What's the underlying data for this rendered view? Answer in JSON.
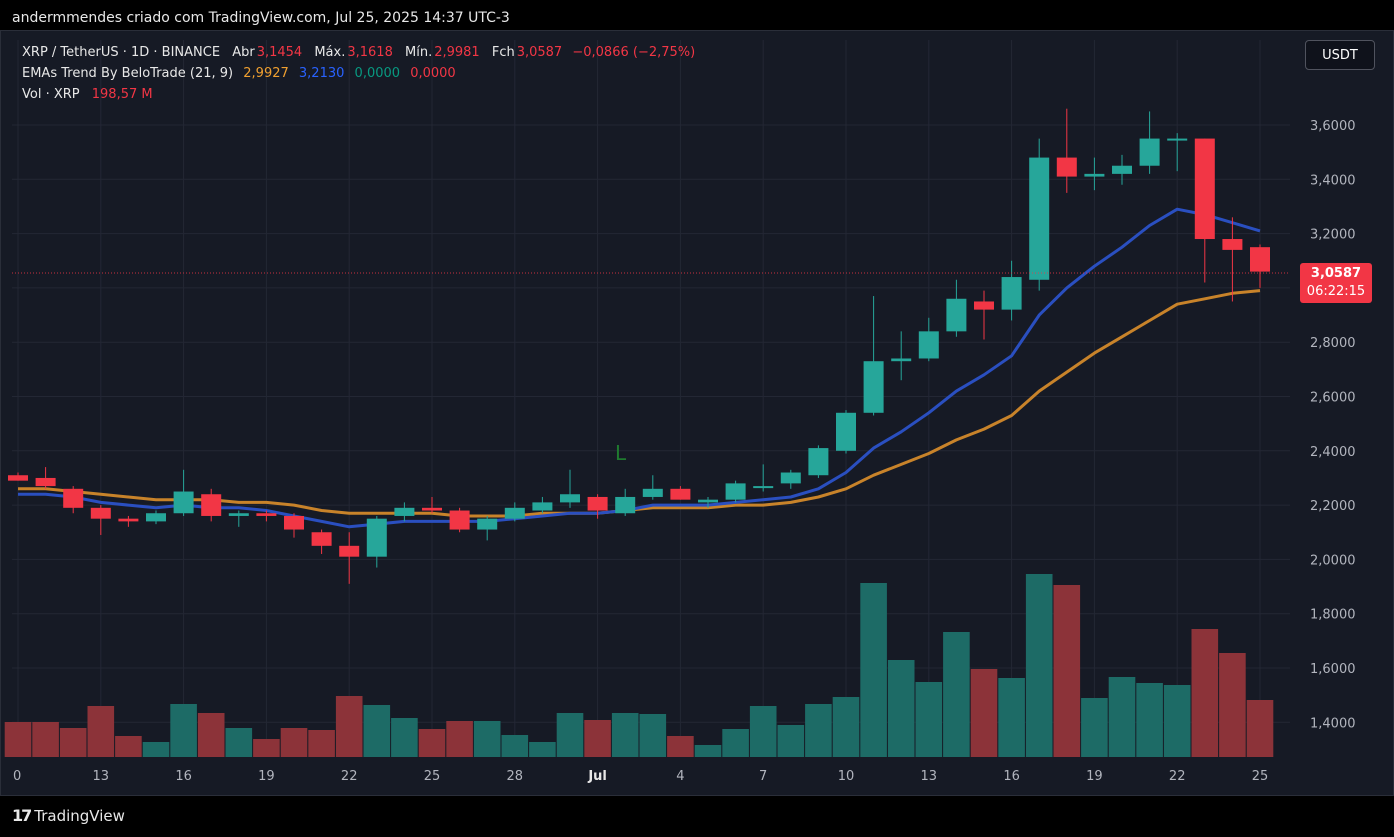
{
  "header": {
    "text": "andermmendes criado com TradingView.com, Jul 25, 2025 14:37 UTC-3"
  },
  "legend": {
    "symbol": "XRP / TetherUS · 1D · BINANCE",
    "open_label": "Abr",
    "open": "3,1454",
    "high_label": "Máx.",
    "high": "3,1618",
    "low_label": "Mín.",
    "low": "2,9981",
    "close_label": "Fch",
    "close": "3,0587",
    "change": "−0,0866 (−2,75%)",
    "ema_name": "EMAs Trend By BeloTrade (21, 9)",
    "ema21": "2,9927",
    "ema9": "3,2130",
    "ema_a": "0,0000",
    "ema_b": "0,0000",
    "vol_label": "Vol · XRP",
    "vol": "198,57 M"
  },
  "currency_button": "USDT",
  "price_tag": {
    "price": "3,0587",
    "countdown": "06:22:15"
  },
  "annotation": "L",
  "footer": {
    "brand": "TradingView",
    "mark": "17"
  },
  "colors": {
    "up": "#26a69a",
    "down": "#f23645",
    "ema9": "#2962ff",
    "ema21": "#f0a030",
    "vol_up": "#1d6b66",
    "vol_down": "#8c3339"
  },
  "chart_data": {
    "type": "candlestick",
    "y_axis_ticks": [
      "1,400",
      "1,600",
      "1,800",
      "2,0000",
      "2,2000",
      "2,4000",
      "2,6000",
      "2,8000",
      "3,0000",
      "3,2000",
      "3,4000",
      "3,6000"
    ],
    "y_tick_values": [
      1.4,
      1.6,
      1.8,
      2.0,
      2.2,
      2.4,
      2.6,
      2.8,
      3.0,
      3.2,
      3.4,
      3.6
    ],
    "y_tick_labels": [
      "1,4000",
      "1,6000",
      "1,8000",
      "2,0000",
      "2,2000",
      "2,4000",
      "2,6000",
      "2,8000",
      "3,0000",
      "3,2000",
      "3,4000",
      "3,6000"
    ],
    "x_tick_labels": [
      {
        "label": "0",
        "index": 0
      },
      {
        "label": "13",
        "index": 3
      },
      {
        "label": "16",
        "index": 6
      },
      {
        "label": "19",
        "index": 9
      },
      {
        "label": "22",
        "index": 12
      },
      {
        "label": "25",
        "index": 15
      },
      {
        "label": "28",
        "index": 18
      },
      {
        "label": "Jul",
        "index": 21
      },
      {
        "label": "4",
        "index": 24
      },
      {
        "label": "7",
        "index": 27
      },
      {
        "label": "10",
        "index": 30
      },
      {
        "label": "13",
        "index": 33
      },
      {
        "label": "16",
        "index": 36
      },
      {
        "label": "19",
        "index": 39
      },
      {
        "label": "22",
        "index": 42
      },
      {
        "label": "25",
        "index": 45
      }
    ],
    "candles": [
      {
        "o": 2.31,
        "h": 2.32,
        "l": 2.29,
        "c": 2.29
      },
      {
        "o": 2.3,
        "h": 2.34,
        "l": 2.26,
        "c": 2.27
      },
      {
        "o": 2.26,
        "h": 2.27,
        "l": 2.17,
        "c": 2.19
      },
      {
        "o": 2.19,
        "h": 2.2,
        "l": 2.09,
        "c": 2.15
      },
      {
        "o": 2.15,
        "h": 2.16,
        "l": 2.12,
        "c": 2.14
      },
      {
        "o": 2.14,
        "h": 2.18,
        "l": 2.13,
        "c": 2.17
      },
      {
        "o": 2.17,
        "h": 2.33,
        "l": 2.16,
        "c": 2.25
      },
      {
        "o": 2.24,
        "h": 2.26,
        "l": 2.14,
        "c": 2.16
      },
      {
        "o": 2.16,
        "h": 2.18,
        "l": 2.12,
        "c": 2.17
      },
      {
        "o": 2.17,
        "h": 2.18,
        "l": 2.14,
        "c": 2.16
      },
      {
        "o": 2.16,
        "h": 2.17,
        "l": 2.08,
        "c": 2.11
      },
      {
        "o": 2.1,
        "h": 2.11,
        "l": 2.02,
        "c": 2.05
      },
      {
        "o": 2.05,
        "h": 2.1,
        "l": 1.91,
        "c": 2.01
      },
      {
        "o": 2.01,
        "h": 2.16,
        "l": 1.97,
        "c": 2.15
      },
      {
        "o": 2.16,
        "h": 2.21,
        "l": 2.14,
        "c": 2.19
      },
      {
        "o": 2.19,
        "h": 2.23,
        "l": 2.17,
        "c": 2.18
      },
      {
        "o": 2.18,
        "h": 2.19,
        "l": 2.1,
        "c": 2.11
      },
      {
        "o": 2.11,
        "h": 2.16,
        "l": 2.07,
        "c": 2.15
      },
      {
        "o": 2.15,
        "h": 2.21,
        "l": 2.14,
        "c": 2.19
      },
      {
        "o": 2.18,
        "h": 2.23,
        "l": 2.17,
        "c": 2.21
      },
      {
        "o": 2.21,
        "h": 2.33,
        "l": 2.19,
        "c": 2.24
      },
      {
        "o": 2.23,
        "h": 2.24,
        "l": 2.15,
        "c": 2.18
      },
      {
        "o": 2.17,
        "h": 2.26,
        "l": 2.16,
        "c": 2.23
      },
      {
        "o": 2.23,
        "h": 2.31,
        "l": 2.22,
        "c": 2.26
      },
      {
        "o": 2.26,
        "h": 2.27,
        "l": 2.22,
        "c": 2.22
      },
      {
        "o": 2.21,
        "h": 2.23,
        "l": 2.19,
        "c": 2.22
      },
      {
        "o": 2.22,
        "h": 2.29,
        "l": 2.21,
        "c": 2.28
      },
      {
        "o": 2.27,
        "h": 2.35,
        "l": 2.25,
        "c": 2.27
      },
      {
        "o": 2.28,
        "h": 2.33,
        "l": 2.26,
        "c": 2.32
      },
      {
        "o": 2.31,
        "h": 2.42,
        "l": 2.3,
        "c": 2.41
      },
      {
        "o": 2.4,
        "h": 2.55,
        "l": 2.39,
        "c": 2.54
      },
      {
        "o": 2.54,
        "h": 2.97,
        "l": 2.53,
        "c": 2.73
      },
      {
        "o": 2.73,
        "h": 2.84,
        "l": 2.66,
        "c": 2.74
      },
      {
        "o": 2.74,
        "h": 2.89,
        "l": 2.73,
        "c": 2.84
      },
      {
        "o": 2.84,
        "h": 3.03,
        "l": 2.82,
        "c": 2.96
      },
      {
        "o": 2.95,
        "h": 2.99,
        "l": 2.81,
        "c": 2.92
      },
      {
        "o": 2.92,
        "h": 3.1,
        "l": 2.88,
        "c": 3.04
      },
      {
        "o": 3.03,
        "h": 3.55,
        "l": 2.99,
        "c": 3.48
      },
      {
        "o": 3.48,
        "h": 3.66,
        "l": 3.35,
        "c": 3.41
      },
      {
        "o": 3.41,
        "h": 3.48,
        "l": 3.36,
        "c": 3.42
      },
      {
        "o": 3.42,
        "h": 3.49,
        "l": 3.38,
        "c": 3.45
      },
      {
        "o": 3.45,
        "h": 3.65,
        "l": 3.42,
        "c": 3.55
      },
      {
        "o": 3.55,
        "h": 3.57,
        "l": 3.43,
        "c": 3.55
      },
      {
        "o": 3.55,
        "h": 3.55,
        "l": 3.02,
        "c": 3.18
      },
      {
        "o": 3.18,
        "h": 3.26,
        "l": 2.95,
        "c": 3.14
      },
      {
        "o": 3.15,
        "h": 3.16,
        "l": 3.0,
        "c": 3.06
      }
    ],
    "volume_heights": [
      35,
      35,
      29,
      51,
      21,
      15,
      53,
      44,
      29,
      18,
      29,
      27,
      61,
      52,
      39,
      28,
      36,
      36,
      22,
      15,
      44,
      37,
      44,
      43,
      21,
      12,
      28,
      51,
      32,
      53,
      60,
      174,
      97,
      75,
      125,
      88,
      79,
      183,
      172,
      59,
      80,
      74,
      72,
      128,
      104,
      57
    ],
    "ema9": [
      2.24,
      2.24,
      2.23,
      2.21,
      2.2,
      2.19,
      2.2,
      2.19,
      2.19,
      2.18,
      2.16,
      2.14,
      2.12,
      2.13,
      2.14,
      2.14,
      2.14,
      2.14,
      2.15,
      2.16,
      2.17,
      2.17,
      2.18,
      2.2,
      2.2,
      2.2,
      2.21,
      2.22,
      2.23,
      2.26,
      2.32,
      2.41,
      2.47,
      2.54,
      2.62,
      2.68,
      2.75,
      2.9,
      3.0,
      3.08,
      3.15,
      3.23,
      3.29,
      3.27,
      3.24,
      3.21
    ],
    "ema21": [
      2.26,
      2.26,
      2.25,
      2.24,
      2.23,
      2.22,
      2.22,
      2.22,
      2.21,
      2.21,
      2.2,
      2.18,
      2.17,
      2.17,
      2.17,
      2.17,
      2.16,
      2.16,
      2.16,
      2.17,
      2.17,
      2.17,
      2.18,
      2.19,
      2.19,
      2.19,
      2.2,
      2.2,
      2.21,
      2.23,
      2.26,
      2.31,
      2.35,
      2.39,
      2.44,
      2.48,
      2.53,
      2.62,
      2.69,
      2.76,
      2.82,
      2.88,
      2.94,
      2.96,
      2.98,
      2.99
    ]
  }
}
